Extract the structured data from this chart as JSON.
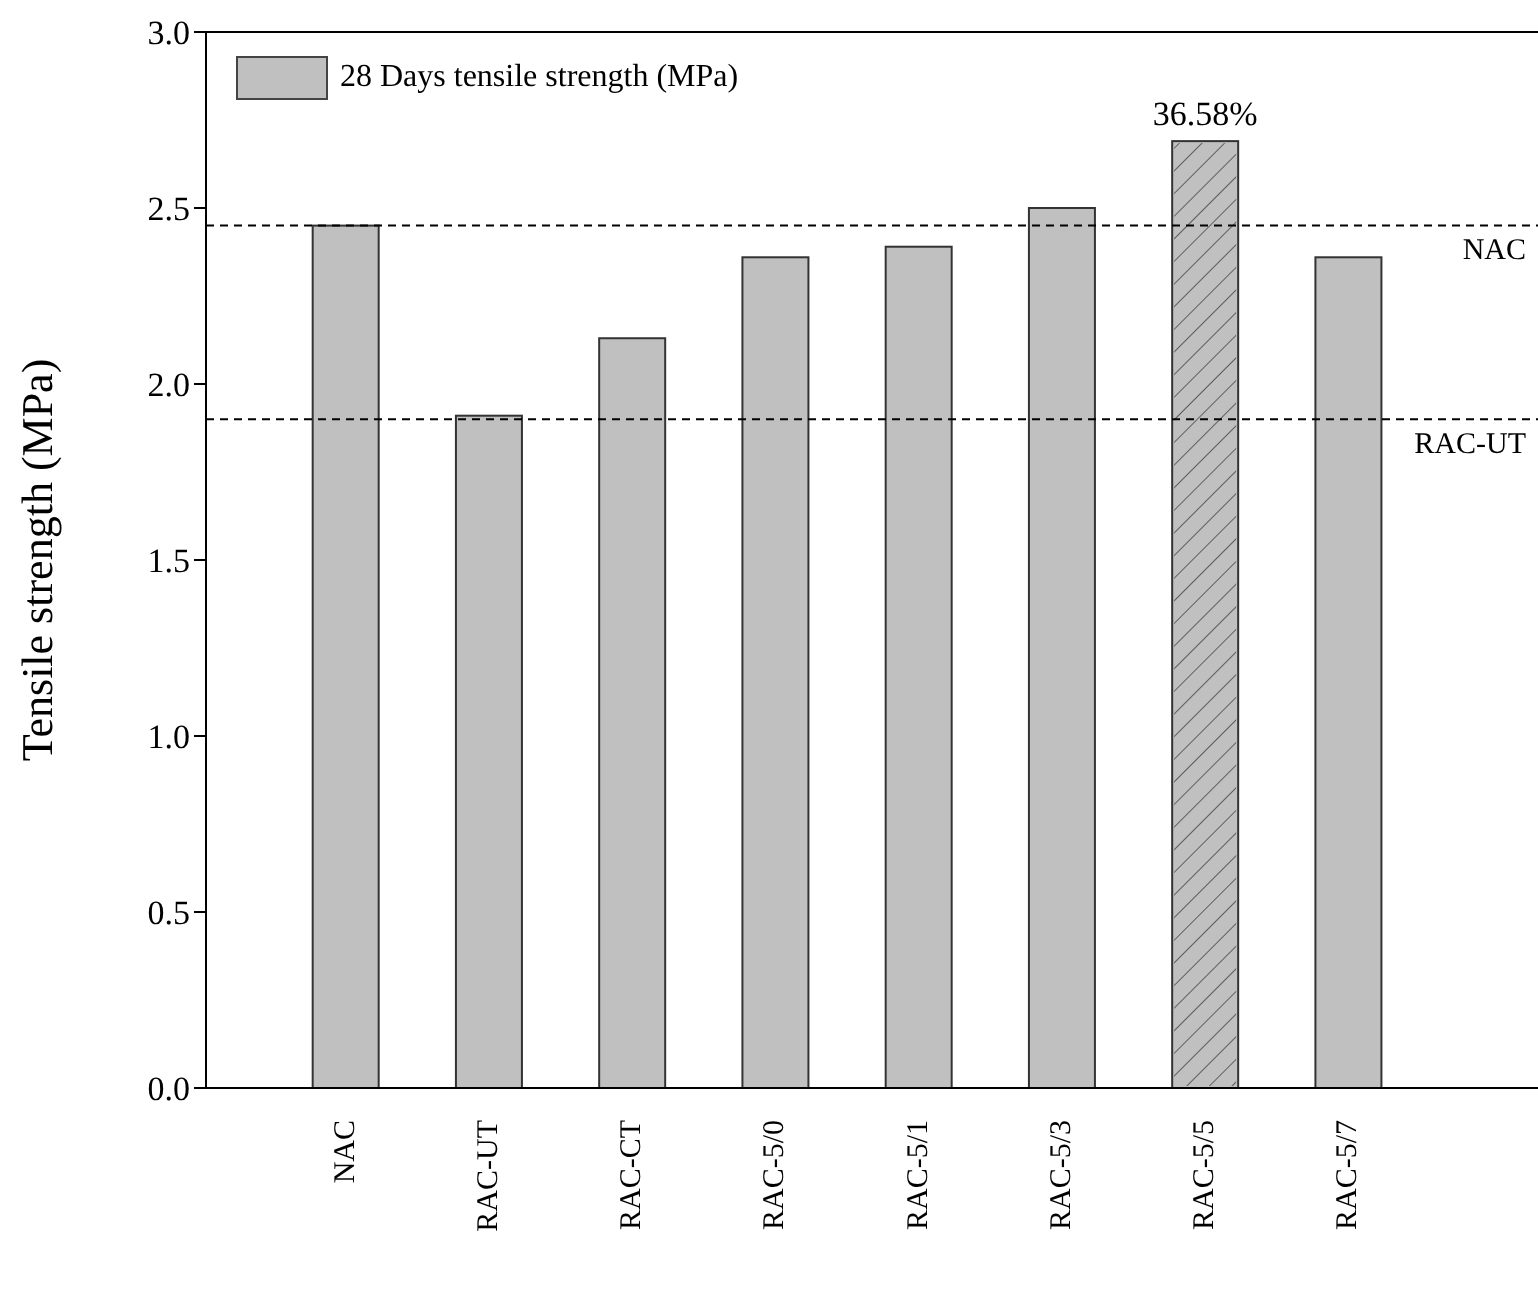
{
  "chart_data": {
    "type": "bar",
    "ylabel": "Tensile strength (MPa)",
    "categories": [
      "NAC",
      "RAC-UT",
      "RAC-CT",
      "RAC-5/0",
      "RAC-5/1",
      "RAC-5/3",
      "RAC-5/5",
      "RAC-5/7"
    ],
    "series": [
      {
        "name": "28 Days tensile strength (MPa)",
        "color": "#c0c0c0",
        "values": [
          2.45,
          1.91,
          2.13,
          2.36,
          2.39,
          2.5,
          2.69,
          2.36
        ]
      }
    ],
    "ylim": [
      0,
      3.0
    ],
    "yticks": [
      {
        "value": 0,
        "label": "0.0"
      },
      {
        "value": 0.5,
        "label": "0.5"
      },
      {
        "value": 1,
        "label": "1.0"
      },
      {
        "value": 1.5,
        "label": "1.5"
      },
      {
        "value": 2,
        "label": "2.0"
      },
      {
        "value": 2.5,
        "label": "2.5"
      },
      {
        "value": 3,
        "label": "3.0"
      }
    ],
    "ref_lines": [
      {
        "axis": "y",
        "value": 2.45,
        "label": "NAC",
        "color": "#000000",
        "line_style": "dashed"
      },
      {
        "axis": "y",
        "value": 1.9,
        "label": "RAC-UT",
        "color": "#000000",
        "line_style": "dashed"
      }
    ],
    "annotations": [
      {
        "text": "36.58%",
        "x": "RAC-5/5",
        "y": 2.69
      }
    ],
    "legend": "top left",
    "grid": false
  }
}
